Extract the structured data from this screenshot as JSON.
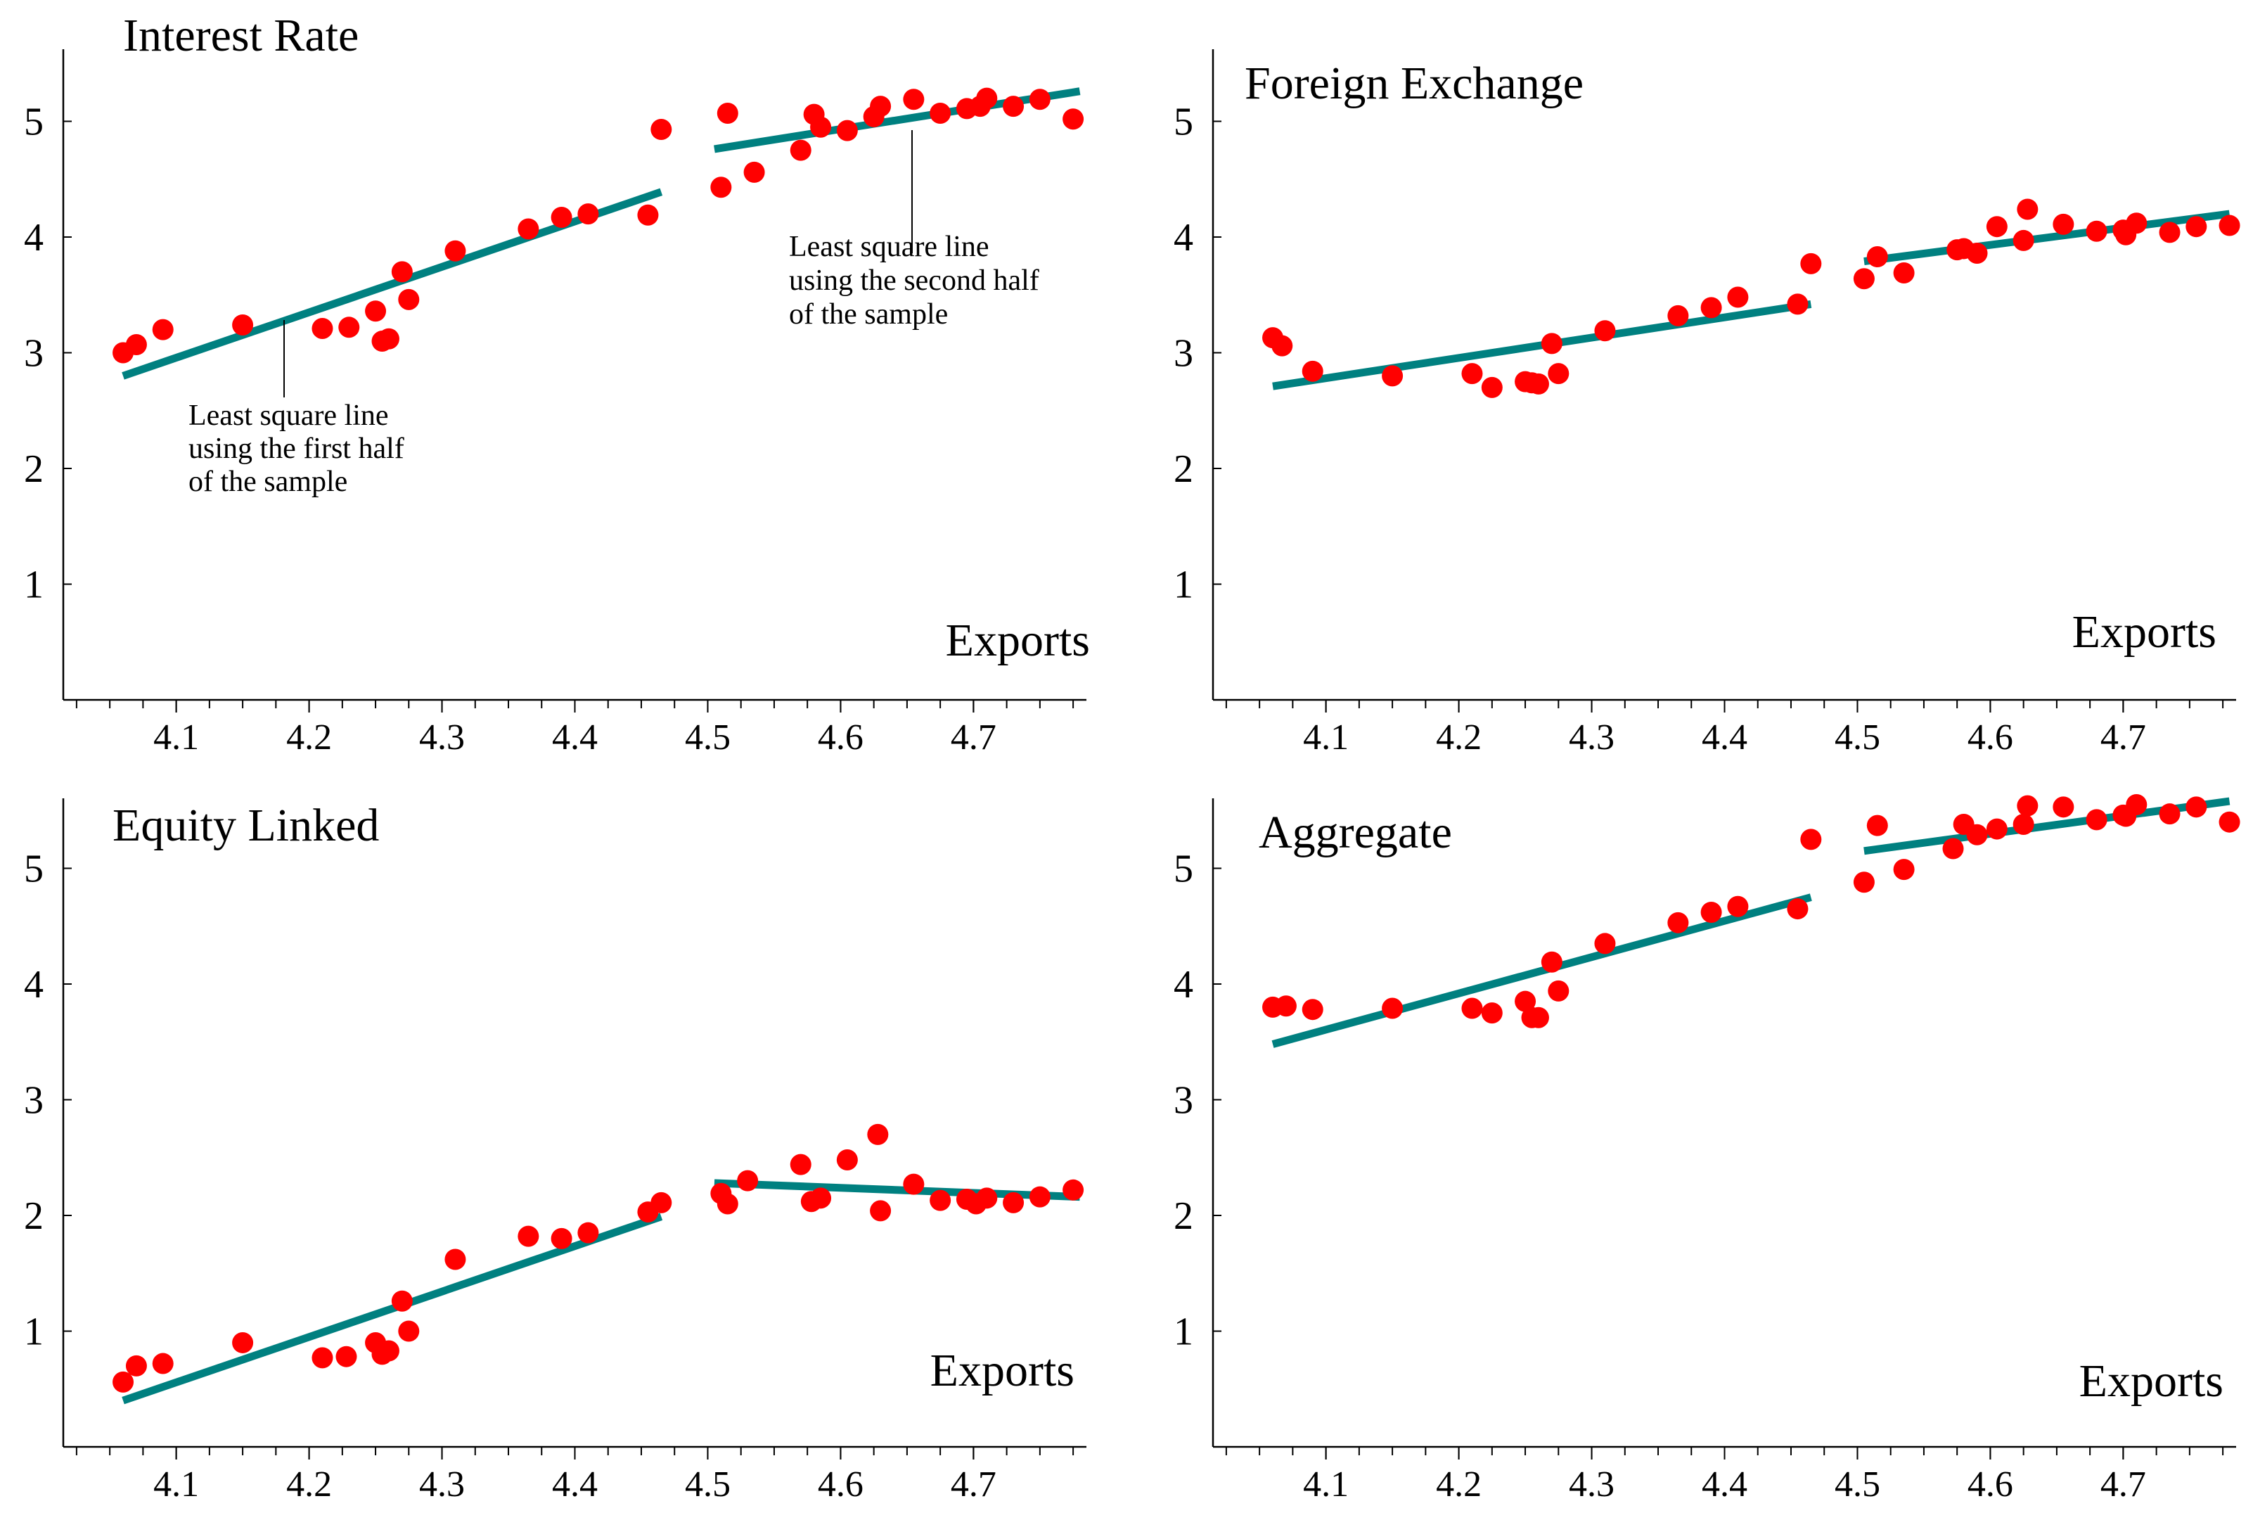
{
  "chart_data": [
    {
      "type": "scatter",
      "title": "Interest Rate",
      "xlabel": "Exports",
      "ylabel": "",
      "xlim": [
        4.015,
        4.785
      ],
      "ylim": [
        0,
        5.6
      ],
      "xticks": [
        "4.1",
        "4.2",
        "4.3",
        "4.4",
        "4.5",
        "4.6",
        "4.7"
      ],
      "yticks": [
        "1",
        "2",
        "3",
        "4",
        "5"
      ],
      "points": [
        [
          4.06,
          3.0
        ],
        [
          4.07,
          3.07
        ],
        [
          4.09,
          3.2
        ],
        [
          4.15,
          3.24
        ],
        [
          4.21,
          3.21
        ],
        [
          4.23,
          3.22
        ],
        [
          4.25,
          3.36
        ],
        [
          4.255,
          3.1
        ],
        [
          4.26,
          3.12
        ],
        [
          4.27,
          3.7
        ],
        [
          4.275,
          3.46
        ],
        [
          4.31,
          3.88
        ],
        [
          4.365,
          4.07
        ],
        [
          4.39,
          4.17
        ],
        [
          4.41,
          4.2
        ],
        [
          4.455,
          4.19
        ],
        [
          4.465,
          4.93
        ],
        [
          4.51,
          4.43
        ],
        [
          4.515,
          5.07
        ],
        [
          4.535,
          4.56
        ],
        [
          4.57,
          4.75
        ],
        [
          4.58,
          5.06
        ],
        [
          4.585,
          4.95
        ],
        [
          4.605,
          4.92
        ],
        [
          4.625,
          5.04
        ],
        [
          4.63,
          5.13
        ],
        [
          4.655,
          5.19
        ],
        [
          4.675,
          5.07
        ],
        [
          4.695,
          5.11
        ],
        [
          4.705,
          5.13
        ],
        [
          4.71,
          5.2
        ],
        [
          4.73,
          5.13
        ],
        [
          4.75,
          5.19
        ],
        [
          4.775,
          5.02
        ]
      ],
      "fit_lines": [
        {
          "name": "first half",
          "x": [
            4.06,
            4.465
          ],
          "y": [
            2.8,
            4.39
          ]
        },
        {
          "name": "second half",
          "x": [
            4.505,
            4.78
          ],
          "y": [
            4.76,
            5.26
          ]
        }
      ],
      "annotations": [
        {
          "lines": [
            "Least square line",
            "using the first half",
            "of the sample"
          ]
        },
        {
          "lines": [
            "Least square line",
            "using the second half",
            "of the sample"
          ]
        }
      ]
    },
    {
      "type": "scatter",
      "title": "Foreign Exchange",
      "xlabel": "Exports",
      "ylabel": "",
      "xlim": [
        4.015,
        4.785
      ],
      "ylim": [
        0,
        5.6
      ],
      "xticks": [
        "4.1",
        "4.2",
        "4.3",
        "4.4",
        "4.5",
        "4.6",
        "4.7"
      ],
      "yticks": [
        "1",
        "2",
        "3",
        "4",
        "5"
      ],
      "points": [
        [
          4.06,
          3.13
        ],
        [
          4.067,
          3.06
        ],
        [
          4.09,
          2.84
        ],
        [
          4.15,
          2.8
        ],
        [
          4.21,
          2.82
        ],
        [
          4.225,
          2.7
        ],
        [
          4.25,
          2.75
        ],
        [
          4.255,
          2.74
        ],
        [
          4.26,
          2.73
        ],
        [
          4.27,
          3.08
        ],
        [
          4.275,
          2.82
        ],
        [
          4.31,
          3.19
        ],
        [
          4.365,
          3.32
        ],
        [
          4.39,
          3.39
        ],
        [
          4.41,
          3.48
        ],
        [
          4.455,
          3.42
        ],
        [
          4.465,
          3.77
        ],
        [
          4.505,
          3.64
        ],
        [
          4.515,
          3.83
        ],
        [
          4.535,
          3.69
        ],
        [
          4.575,
          3.89
        ],
        [
          4.58,
          3.9
        ],
        [
          4.59,
          3.86
        ],
        [
          4.605,
          4.09
        ],
        [
          4.625,
          3.97
        ],
        [
          4.628,
          4.24
        ],
        [
          4.655,
          4.11
        ],
        [
          4.68,
          4.05
        ],
        [
          4.7,
          4.06
        ],
        [
          4.702,
          4.02
        ],
        [
          4.71,
          4.12
        ],
        [
          4.735,
          4.04
        ],
        [
          4.755,
          4.09
        ],
        [
          4.78,
          4.1
        ]
      ],
      "fit_lines": [
        {
          "name": "first half",
          "x": [
            4.06,
            4.465
          ],
          "y": [
            2.71,
            3.42
          ]
        },
        {
          "name": "second half",
          "x": [
            4.505,
            4.78
          ],
          "y": [
            3.79,
            4.2
          ]
        }
      ]
    },
    {
      "type": "scatter",
      "title": "Equity Linked",
      "xlabel": "Exports",
      "ylabel": "",
      "xlim": [
        4.015,
        4.785
      ],
      "ylim": [
        0,
        5.6
      ],
      "xticks": [
        "4.1",
        "4.2",
        "4.3",
        "4.4",
        "4.5",
        "4.6",
        "4.7"
      ],
      "yticks": [
        "1",
        "2",
        "3",
        "4",
        "5"
      ],
      "points": [
        [
          4.06,
          0.56
        ],
        [
          4.07,
          0.7
        ],
        [
          4.09,
          0.72
        ],
        [
          4.15,
          0.9
        ],
        [
          4.21,
          0.77
        ],
        [
          4.228,
          0.78
        ],
        [
          4.25,
          0.9
        ],
        [
          4.255,
          0.8
        ],
        [
          4.26,
          0.83
        ],
        [
          4.27,
          1.26
        ],
        [
          4.275,
          1.0
        ],
        [
          4.31,
          1.62
        ],
        [
          4.365,
          1.82
        ],
        [
          4.39,
          1.8
        ],
        [
          4.41,
          1.85
        ],
        [
          4.455,
          2.03
        ],
        [
          4.465,
          2.11
        ],
        [
          4.51,
          2.19
        ],
        [
          4.515,
          2.1
        ],
        [
          4.53,
          2.3
        ],
        [
          4.57,
          2.44
        ],
        [
          4.578,
          2.12
        ],
        [
          4.585,
          2.15
        ],
        [
          4.605,
          2.48
        ],
        [
          4.628,
          2.7
        ],
        [
          4.63,
          2.04
        ],
        [
          4.655,
          2.27
        ],
        [
          4.675,
          2.13
        ],
        [
          4.695,
          2.14
        ],
        [
          4.702,
          2.1
        ],
        [
          4.71,
          2.15
        ],
        [
          4.73,
          2.11
        ],
        [
          4.75,
          2.16
        ],
        [
          4.775,
          2.22
        ]
      ],
      "fit_lines": [
        {
          "name": "first half",
          "x": [
            4.06,
            4.465
          ],
          "y": [
            0.4,
            1.99
          ]
        },
        {
          "name": "second half",
          "x": [
            4.505,
            4.78
          ],
          "y": [
            2.28,
            2.16
          ]
        }
      ]
    },
    {
      "type": "scatter",
      "title": "Aggregate",
      "xlabel": "Exports",
      "ylabel": "",
      "xlim": [
        4.015,
        4.785
      ],
      "ylim": [
        0,
        5.6
      ],
      "xticks": [
        "4.1",
        "4.2",
        "4.3",
        "4.4",
        "4.5",
        "4.6",
        "4.7"
      ],
      "yticks": [
        "1",
        "2",
        "3",
        "4",
        "5"
      ],
      "points": [
        [
          4.06,
          3.8
        ],
        [
          4.07,
          3.81
        ],
        [
          4.09,
          3.78
        ],
        [
          4.15,
          3.79
        ],
        [
          4.21,
          3.79
        ],
        [
          4.225,
          3.75
        ],
        [
          4.25,
          3.85
        ],
        [
          4.255,
          3.71
        ],
        [
          4.26,
          3.71
        ],
        [
          4.27,
          4.19
        ],
        [
          4.275,
          3.94
        ],
        [
          4.31,
          4.35
        ],
        [
          4.365,
          4.53
        ],
        [
          4.39,
          4.62
        ],
        [
          4.41,
          4.67
        ],
        [
          4.455,
          4.65
        ],
        [
          4.465,
          5.25
        ],
        [
          4.505,
          4.88
        ],
        [
          4.515,
          5.37
        ],
        [
          4.535,
          4.99
        ],
        [
          4.572,
          5.17
        ],
        [
          4.58,
          5.38
        ],
        [
          4.59,
          5.29
        ],
        [
          4.605,
          5.34
        ],
        [
          4.625,
          5.38
        ],
        [
          4.628,
          5.54
        ],
        [
          4.655,
          5.53
        ],
        [
          4.68,
          5.42
        ],
        [
          4.7,
          5.46
        ],
        [
          4.702,
          5.45
        ],
        [
          4.71,
          5.55
        ],
        [
          4.735,
          5.47
        ],
        [
          4.755,
          5.53
        ],
        [
          4.78,
          5.4
        ]
      ],
      "fit_lines": [
        {
          "name": "first half",
          "x": [
            4.06,
            4.465
          ],
          "y": [
            3.48,
            4.75
          ]
        },
        {
          "name": "second half",
          "x": [
            4.505,
            4.78
          ],
          "y": [
            5.15,
            5.58
          ]
        }
      ]
    }
  ]
}
